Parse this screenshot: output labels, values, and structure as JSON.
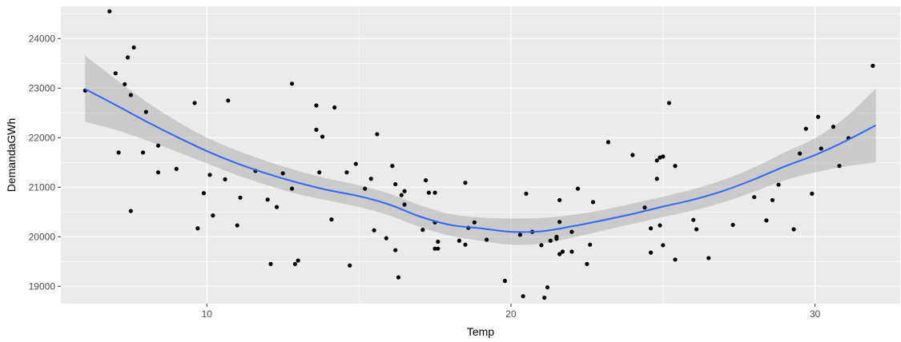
{
  "chart_data": {
    "type": "scatter",
    "title": "",
    "xlabel": "Temp",
    "ylabel": "DemandaGWh",
    "xlim": [
      5.2,
      32.8
    ],
    "ylim": [
      18650,
      24650
    ],
    "x_ticks": [
      10,
      20,
      30
    ],
    "x_tick_labels": [
      "10",
      "20",
      "30"
    ],
    "y_ticks": [
      19000,
      20000,
      21000,
      22000,
      23000,
      24000
    ],
    "y_tick_labels": [
      "19000",
      "20000",
      "21000",
      "22000",
      "23000",
      "24000"
    ],
    "grid": true,
    "legend": "none",
    "colors": {
      "panel_background": "#ebebeb",
      "grid_major": "#ffffff",
      "points": "#000000",
      "smooth_line": "#3366ff",
      "confidence_band": "#999999"
    },
    "points": [
      {
        "x": 6.0,
        "y": 22950
      },
      {
        "x": 6.8,
        "y": 24550
      },
      {
        "x": 7.0,
        "y": 23300
      },
      {
        "x": 7.1,
        "y": 21700
      },
      {
        "x": 7.3,
        "y": 23080
      },
      {
        "x": 7.4,
        "y": 23620
      },
      {
        "x": 7.5,
        "y": 22860
      },
      {
        "x": 7.6,
        "y": 23820
      },
      {
        "x": 7.5,
        "y": 20520
      },
      {
        "x": 7.9,
        "y": 21700
      },
      {
        "x": 8.0,
        "y": 22520
      },
      {
        "x": 8.4,
        "y": 21840
      },
      {
        "x": 8.4,
        "y": 21300
      },
      {
        "x": 9.0,
        "y": 21370
      },
      {
        "x": 9.6,
        "y": 22700
      },
      {
        "x": 9.7,
        "y": 20170
      },
      {
        "x": 9.9,
        "y": 20880
      },
      {
        "x": 10.1,
        "y": 21250
      },
      {
        "x": 10.2,
        "y": 20430
      },
      {
        "x": 10.6,
        "y": 21160
      },
      {
        "x": 10.7,
        "y": 22750
      },
      {
        "x": 11.0,
        "y": 20230
      },
      {
        "x": 11.1,
        "y": 20790
      },
      {
        "x": 11.6,
        "y": 21330
      },
      {
        "x": 12.0,
        "y": 20750
      },
      {
        "x": 12.1,
        "y": 19450
      },
      {
        "x": 12.3,
        "y": 20600
      },
      {
        "x": 12.5,
        "y": 21280
      },
      {
        "x": 12.8,
        "y": 23090
      },
      {
        "x": 12.8,
        "y": 20970
      },
      {
        "x": 12.9,
        "y": 19450
      },
      {
        "x": 13.0,
        "y": 19520
      },
      {
        "x": 13.6,
        "y": 22650
      },
      {
        "x": 13.6,
        "y": 22160
      },
      {
        "x": 13.7,
        "y": 21300
      },
      {
        "x": 13.8,
        "y": 22020
      },
      {
        "x": 14.1,
        "y": 20350
      },
      {
        "x": 14.2,
        "y": 22610
      },
      {
        "x": 14.6,
        "y": 21300
      },
      {
        "x": 14.7,
        "y": 19420
      },
      {
        "x": 14.9,
        "y": 21470
      },
      {
        "x": 15.2,
        "y": 20970
      },
      {
        "x": 15.4,
        "y": 21170
      },
      {
        "x": 15.5,
        "y": 20130
      },
      {
        "x": 15.6,
        "y": 22070
      },
      {
        "x": 15.9,
        "y": 19970
      },
      {
        "x": 16.1,
        "y": 21430
      },
      {
        "x": 16.2,
        "y": 21060
      },
      {
        "x": 16.2,
        "y": 19730
      },
      {
        "x": 16.3,
        "y": 19180
      },
      {
        "x": 16.4,
        "y": 20840
      },
      {
        "x": 16.5,
        "y": 20650
      },
      {
        "x": 16.5,
        "y": 20920
      },
      {
        "x": 17.1,
        "y": 20140
      },
      {
        "x": 17.2,
        "y": 21140
      },
      {
        "x": 17.3,
        "y": 20890
      },
      {
        "x": 17.5,
        "y": 20890
      },
      {
        "x": 17.5,
        "y": 20290
      },
      {
        "x": 17.5,
        "y": 19760
      },
      {
        "x": 17.6,
        "y": 19760
      },
      {
        "x": 17.6,
        "y": 19900
      },
      {
        "x": 18.3,
        "y": 19920
      },
      {
        "x": 18.5,
        "y": 21090
      },
      {
        "x": 18.5,
        "y": 19840
      },
      {
        "x": 18.6,
        "y": 20180
      },
      {
        "x": 18.8,
        "y": 20290
      },
      {
        "x": 19.2,
        "y": 19940
      },
      {
        "x": 19.8,
        "y": 19110
      },
      {
        "x": 20.3,
        "y": 20040
      },
      {
        "x": 20.4,
        "y": 18800
      },
      {
        "x": 20.5,
        "y": 20870
      },
      {
        "x": 20.7,
        "y": 20100
      },
      {
        "x": 21.0,
        "y": 19830
      },
      {
        "x": 21.1,
        "y": 18770
      },
      {
        "x": 21.2,
        "y": 18980
      },
      {
        "x": 21.3,
        "y": 19920
      },
      {
        "x": 21.5,
        "y": 19960
      },
      {
        "x": 21.5,
        "y": 20000
      },
      {
        "x": 21.6,
        "y": 20740
      },
      {
        "x": 21.6,
        "y": 20300
      },
      {
        "x": 21.7,
        "y": 19700
      },
      {
        "x": 21.6,
        "y": 19650
      },
      {
        "x": 22.0,
        "y": 19700
      },
      {
        "x": 22.0,
        "y": 20100
      },
      {
        "x": 22.2,
        "y": 20970
      },
      {
        "x": 22.5,
        "y": 19450
      },
      {
        "x": 22.6,
        "y": 19840
      },
      {
        "x": 22.7,
        "y": 20700
      },
      {
        "x": 23.2,
        "y": 21910
      },
      {
        "x": 24.0,
        "y": 21650
      },
      {
        "x": 24.4,
        "y": 20590
      },
      {
        "x": 24.6,
        "y": 19680
      },
      {
        "x": 24.6,
        "y": 20170
      },
      {
        "x": 24.8,
        "y": 21170
      },
      {
        "x": 24.8,
        "y": 21540
      },
      {
        "x": 24.9,
        "y": 21600
      },
      {
        "x": 24.9,
        "y": 20230
      },
      {
        "x": 25.0,
        "y": 21620
      },
      {
        "x": 25.0,
        "y": 19830
      },
      {
        "x": 25.2,
        "y": 22700
      },
      {
        "x": 25.4,
        "y": 21430
      },
      {
        "x": 25.4,
        "y": 19540
      },
      {
        "x": 26.0,
        "y": 20340
      },
      {
        "x": 26.1,
        "y": 20150
      },
      {
        "x": 26.5,
        "y": 19570
      },
      {
        "x": 27.3,
        "y": 20240
      },
      {
        "x": 28.0,
        "y": 20800
      },
      {
        "x": 28.4,
        "y": 20330
      },
      {
        "x": 28.6,
        "y": 20740
      },
      {
        "x": 28.8,
        "y": 21050
      },
      {
        "x": 29.3,
        "y": 20150
      },
      {
        "x": 29.5,
        "y": 21680
      },
      {
        "x": 29.7,
        "y": 22180
      },
      {
        "x": 29.9,
        "y": 20870
      },
      {
        "x": 30.1,
        "y": 22420
      },
      {
        "x": 30.2,
        "y": 21780
      },
      {
        "x": 30.6,
        "y": 22220
      },
      {
        "x": 30.8,
        "y": 21430
      },
      {
        "x": 31.1,
        "y": 21990
      },
      {
        "x": 31.9,
        "y": 23450
      }
    ],
    "smooth": {
      "x": [
        6.0,
        7.0,
        8.0,
        9.0,
        10.0,
        11.0,
        12.0,
        13.0,
        14.0,
        15.0,
        16.0,
        17.0,
        18.0,
        19.0,
        20.0,
        21.0,
        22.0,
        23.0,
        24.0,
        25.0,
        26.0,
        27.0,
        28.0,
        29.0,
        30.0,
        31.0,
        32.0
      ],
      "y": [
        22980,
        22660,
        22330,
        22020,
        21730,
        21480,
        21270,
        21090,
        20940,
        20820,
        20650,
        20410,
        20240,
        20170,
        20100,
        20110,
        20210,
        20330,
        20460,
        20610,
        20750,
        20930,
        21160,
        21420,
        21650,
        21930,
        22250
      ],
      "lower": [
        22320,
        22160,
        21950,
        21720,
        21480,
        21240,
        21040,
        20860,
        20730,
        20600,
        20430,
        20200,
        20020,
        19920,
        19840,
        19860,
        19980,
        20120,
        20260,
        20400,
        20530,
        20700,
        20910,
        21140,
        21300,
        21420,
        21500
      ],
      "upper": [
        23660,
        23180,
        22730,
        22340,
        22000,
        21740,
        21520,
        21330,
        21170,
        21040,
        20870,
        20640,
        20460,
        20390,
        20370,
        20380,
        20440,
        20540,
        20670,
        20810,
        20960,
        21150,
        21400,
        21700,
        21990,
        22410,
        22990
      ]
    }
  }
}
